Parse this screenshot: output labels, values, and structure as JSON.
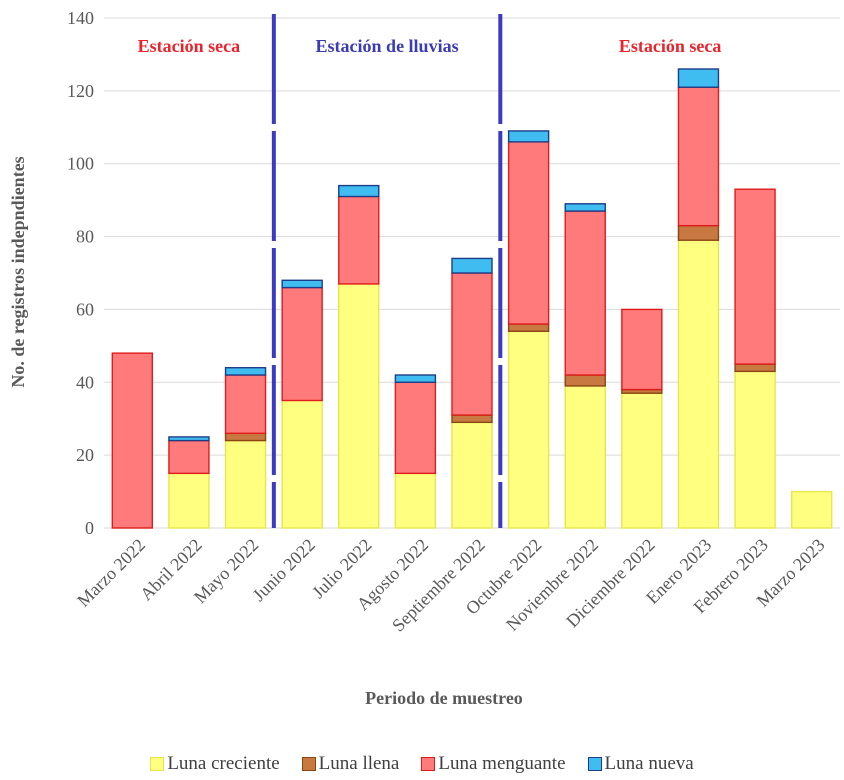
{
  "chart_data": {
    "type": "bar",
    "stacked": true,
    "xlabel": "Periodo de muestreo",
    "ylabel": "No. de registros indepndientes",
    "ylim": [
      0,
      140
    ],
    "yticks": [
      0,
      20,
      40,
      60,
      80,
      100,
      120,
      140
    ],
    "grid": true,
    "legend_position": "bottom",
    "categories": [
      "Marzo 2022",
      "Abril 2022",
      "Mayo 2022",
      "Junio 2022",
      "Julio 2022",
      "Agosto 2022",
      "Septiembre 2022",
      "Octubre 2022",
      "Noviembre 2022",
      "Diciembre 2022",
      "Enero 2023",
      "Febrero 2023",
      "Marzo 2023"
    ],
    "series": [
      {
        "name": "Luna creciente",
        "color": "#ffff80",
        "border": "#e6e64d",
        "values": [
          0,
          15,
          24,
          35,
          67,
          15,
          29,
          54,
          39,
          37,
          79,
          43,
          10
        ]
      },
      {
        "name": "Luna llena",
        "color": "#c87941",
        "border": "#8b4513",
        "values": [
          0,
          0,
          2,
          0,
          0,
          0,
          2,
          2,
          3,
          1,
          4,
          2,
          0
        ]
      },
      {
        "name": "Luna menguante",
        "color": "#ff7b7b",
        "border": "#e01b1b",
        "values": [
          48,
          9,
          16,
          31,
          24,
          25,
          39,
          50,
          45,
          22,
          38,
          48,
          0
        ]
      },
      {
        "name": "Luna nueva",
        "color": "#3fbcf0",
        "border": "#1f3c88",
        "values": [
          0,
          1,
          2,
          2,
          3,
          2,
          4,
          3,
          2,
          0,
          5,
          0,
          0
        ]
      }
    ],
    "seasons": [
      {
        "label": "Estación seca",
        "color": "#e8242c"
      },
      {
        "label": "Estación de lluvias",
        "color": "#3b3bb3"
      },
      {
        "label": "Estación seca",
        "color": "#e8242c"
      }
    ],
    "season_boundaries_after_index": [
      2,
      6
    ],
    "divider_color": "#3b3bc0"
  }
}
